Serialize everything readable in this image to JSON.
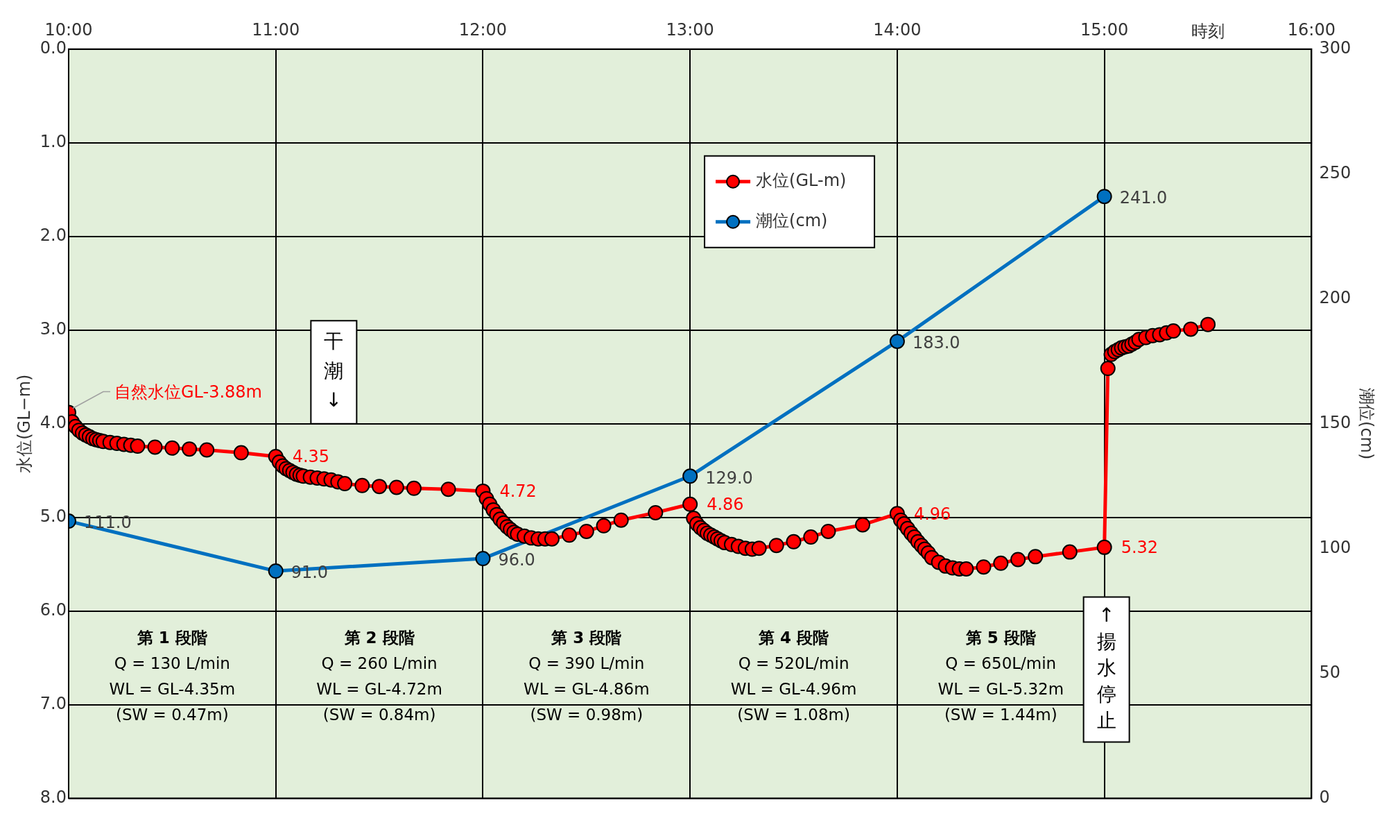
{
  "chart_data": {
    "type": "line",
    "xlabel": "時刻",
    "ylabel": "水位(GL−m)",
    "y2label": "潮位(cm)",
    "xlim": [
      10,
      16
    ],
    "xticks": [
      {
        "value": 10,
        "label": "10:00"
      },
      {
        "value": 11,
        "label": "11:00"
      },
      {
        "value": 12,
        "label": "12:00"
      },
      {
        "value": 13,
        "label": "13:00"
      },
      {
        "value": 14,
        "label": "14:00"
      },
      {
        "value": 15,
        "label": "15:00"
      },
      {
        "value": 16,
        "label": "16:00"
      }
    ],
    "ylim": [
      8,
      0
    ],
    "yticks": [
      {
        "value": 0,
        "label": "0.0"
      },
      {
        "value": 1,
        "label": "1.0"
      },
      {
        "value": 2,
        "label": "2.0"
      },
      {
        "value": 3,
        "label": "3.0"
      },
      {
        "value": 4,
        "label": "4.0"
      },
      {
        "value": 5,
        "label": "5.0"
      },
      {
        "value": 6,
        "label": "6.0"
      },
      {
        "value": 7,
        "label": "7.0"
      },
      {
        "value": 8,
        "label": "8.0"
      }
    ],
    "y2lim": [
      0,
      300
    ],
    "y2ticks": [
      0,
      50,
      100,
      150,
      200,
      250,
      300
    ],
    "grid": true,
    "legend": "top",
    "marker": "circle",
    "line_style": "solid",
    "series": [
      {
        "name": "水位(GL-m)",
        "color": "#ff0000",
        "x": [
          10,
          10.017,
          10.033,
          10.05,
          10.067,
          10.083,
          10.1,
          10.117,
          10.133,
          10.15,
          10.167,
          10.2,
          10.233,
          10.267,
          10.3,
          10.333,
          10.417,
          10.5,
          10.583,
          10.667,
          10.833,
          11,
          11.017,
          11.033,
          11.05,
          11.067,
          11.083,
          11.1,
          11.117,
          11.133,
          11.167,
          11.2,
          11.233,
          11.267,
          11.3,
          11.333,
          11.417,
          11.5,
          11.583,
          11.667,
          11.833,
          12,
          12.017,
          12.033,
          12.05,
          12.067,
          12.083,
          12.1,
          12.117,
          12.133,
          12.15,
          12.167,
          12.2,
          12.233,
          12.267,
          12.3,
          12.333,
          12.417,
          12.5,
          12.583,
          12.667,
          12.833,
          13,
          13.017,
          13.033,
          13.05,
          13.067,
          13.083,
          13.1,
          13.117,
          13.133,
          13.15,
          13.167,
          13.2,
          13.233,
          13.267,
          13.3,
          13.333,
          13.417,
          13.5,
          13.583,
          13.667,
          13.833,
          14,
          14.017,
          14.033,
          14.05,
          14.067,
          14.083,
          14.1,
          14.117,
          14.133,
          14.15,
          14.167,
          14.2,
          14.233,
          14.267,
          14.3,
          14.333,
          14.417,
          14.5,
          14.583,
          14.667,
          14.833,
          15,
          15.017,
          15.033,
          15.05,
          15.067,
          15.083,
          15.1,
          15.117,
          15.133,
          15.15,
          15.167,
          15.2,
          15.233,
          15.267,
          15.3,
          15.333,
          15.417,
          15.5
        ],
        "values": [
          3.88,
          3.98,
          4.03,
          4.07,
          4.1,
          4.12,
          4.14,
          4.16,
          4.17,
          4.18,
          4.19,
          4.2,
          4.21,
          4.22,
          4.23,
          4.24,
          4.25,
          4.26,
          4.27,
          4.28,
          4.31,
          4.35,
          4.41,
          4.45,
          4.48,
          4.5,
          4.52,
          4.54,
          4.55,
          4.56,
          4.57,
          4.58,
          4.59,
          4.6,
          4.62,
          4.64,
          4.66,
          4.67,
          4.68,
          4.69,
          4.7,
          4.72,
          4.8,
          4.86,
          4.92,
          4.97,
          5.02,
          5.06,
          5.1,
          5.13,
          5.16,
          5.18,
          5.2,
          5.22,
          5.23,
          5.23,
          5.23,
          5.19,
          5.15,
          5.09,
          5.03,
          4.95,
          4.86,
          5.01,
          5.07,
          5.11,
          5.14,
          5.17,
          5.19,
          5.21,
          5.23,
          5.25,
          5.27,
          5.29,
          5.31,
          5.33,
          5.34,
          5.33,
          5.3,
          5.26,
          5.21,
          5.15,
          5.08,
          4.96,
          5.03,
          5.07,
          5.12,
          5.17,
          5.21,
          5.26,
          5.3,
          5.34,
          5.38,
          5.43,
          5.48,
          5.52,
          5.54,
          5.55,
          5.55,
          5.53,
          5.49,
          5.45,
          5.42,
          5.37,
          5.32,
          3.41,
          3.26,
          3.23,
          3.21,
          3.19,
          3.18,
          3.17,
          3.15,
          3.13,
          3.1,
          3.08,
          3.06,
          3.05,
          3.03,
          3.01,
          2.99,
          2.94
        ]
      },
      {
        "name": "潮位(cm)",
        "color": "#0070c0",
        "axis": "y2",
        "x": [
          10,
          11,
          12,
          13,
          14,
          15
        ],
        "values": [
          111,
          91,
          96,
          129,
          183,
          241
        ],
        "value_labels": [
          "111.0",
          "91.0",
          "96.0",
          "129.0",
          "183.0",
          "241.0"
        ]
      }
    ],
    "annotations": [
      {
        "text": "自然水位GL-3.88m",
        "x": 10,
        "y": 3.88
      },
      {
        "text": "4.35",
        "x": 11,
        "y": 4.35
      },
      {
        "text": "4.72",
        "x": 12,
        "y": 4.72
      },
      {
        "text": "4.86",
        "x": 13,
        "y": 4.86
      },
      {
        "text": "4.96",
        "x": 14,
        "y": 4.96
      },
      {
        "text": "5.32",
        "x": 15,
        "y": 5.32
      },
      "干潮↓",
      "↑揚水停止",
      "第 1 段階\nQ = 130 L/min\nWL = GL-4.35m\n(SW = 0.47m)",
      "第 2 段階\nQ = 260 L/min\nWL = GL-4.72m\n(SW = 0.84m)",
      "第 3 段階\nQ = 390 L/min\nWL = GL-4.86m\n(SW = 0.98m)",
      "第 4 段階\nQ = 520L/min\nWL = GL-4.96m\n(SW = 1.08m)",
      "第 5 段階\nQ = 650L/min\nWL = GL-5.32m\n(SW = 1.44m)"
    ]
  }
}
